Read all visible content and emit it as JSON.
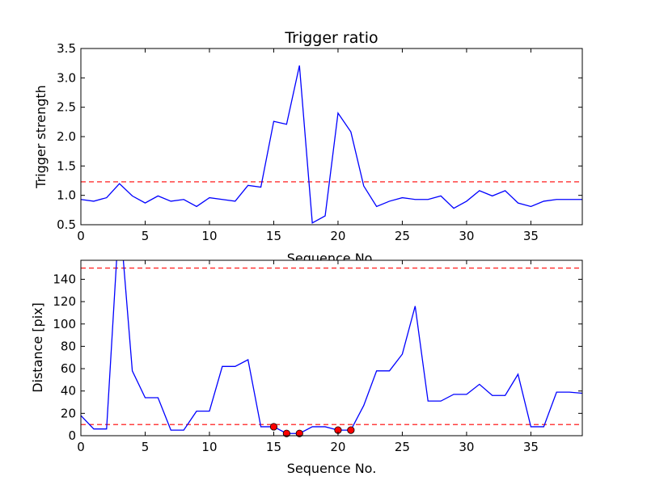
{
  "chart_data": [
    {
      "type": "line",
      "title": "Trigger ratio",
      "xlabel": "Sequence No.",
      "ylabel": "Trigger strength",
      "xlim": [
        0,
        39
      ],
      "ylim": [
        0.5,
        3.5
      ],
      "xticks": [
        "0",
        "5",
        "10",
        "15",
        "20",
        "25",
        "30",
        "35"
      ],
      "yticks": [
        "0.5",
        "1.0",
        "1.5",
        "2.0",
        "2.5",
        "3.0",
        "3.5"
      ],
      "grid": false,
      "series": [
        {
          "color": "#0000ff",
          "x": [
            0,
            1,
            2,
            3,
            4,
            5,
            6,
            7,
            8,
            9,
            10,
            11,
            12,
            13,
            14,
            15,
            16,
            17,
            18,
            19,
            20,
            21,
            22,
            23,
            24,
            25,
            26,
            27,
            28,
            29,
            30,
            31,
            32,
            33,
            34,
            35,
            36,
            37,
            38,
            39
          ],
          "values": [
            0.93,
            0.9,
            0.96,
            1.2,
            0.99,
            0.87,
            0.99,
            0.9,
            0.93,
            0.81,
            0.96,
            0.93,
            0.9,
            1.17,
            1.14,
            2.26,
            2.21,
            3.21,
            0.53,
            0.65,
            2.4,
            2.08,
            1.16,
            0.81,
            0.9,
            0.96,
            0.93,
            0.93,
            0.99,
            0.78,
            0.9,
            1.08,
            0.99,
            1.08,
            0.87,
            0.81,
            0.9,
            0.93,
            0.93,
            0.93
          ]
        }
      ],
      "reference_lines": [
        {
          "y": 1.23,
          "color": "#ff0000",
          "style": "dashed"
        }
      ]
    },
    {
      "type": "line",
      "title": "",
      "xlabel": "Sequence No.",
      "ylabel": "Distance [pix]",
      "xlim": [
        0,
        39
      ],
      "ylim": [
        0,
        157
      ],
      "xticks": [
        "0",
        "5",
        "10",
        "15",
        "20",
        "25",
        "30",
        "35"
      ],
      "yticks": [
        "0",
        "20",
        "40",
        "60",
        "80",
        "100",
        "120",
        "140"
      ],
      "grid": false,
      "series": [
        {
          "color": "#0000ff",
          "x": [
            0,
            1,
            2,
            3,
            4,
            5,
            6,
            7,
            8,
            9,
            10,
            11,
            12,
            13,
            14,
            15,
            16,
            17,
            18,
            19,
            20,
            21,
            22,
            23,
            24,
            25,
            26,
            27,
            28,
            29,
            30,
            31,
            32,
            33,
            34,
            35,
            36,
            37,
            38,
            39
          ],
          "values": [
            18,
            6,
            6,
            200,
            58,
            34,
            34,
            5,
            5,
            22,
            22,
            62,
            62,
            68,
            8,
            8,
            2,
            2,
            8,
            8,
            5,
            5,
            27,
            58,
            58,
            73,
            116,
            31,
            31,
            37,
            37,
            46,
            36,
            36,
            55,
            8,
            8,
            39,
            39,
            38
          ]
        }
      ],
      "markers": {
        "color": "#ff0000",
        "x": [
          15,
          16,
          17,
          20,
          21
        ],
        "values": [
          8,
          2,
          2,
          5,
          5
        ]
      },
      "reference_lines": [
        {
          "y": 150,
          "color": "#ff0000",
          "style": "dashed"
        },
        {
          "y": 10,
          "color": "#ff0000",
          "style": "dashed"
        }
      ]
    }
  ]
}
